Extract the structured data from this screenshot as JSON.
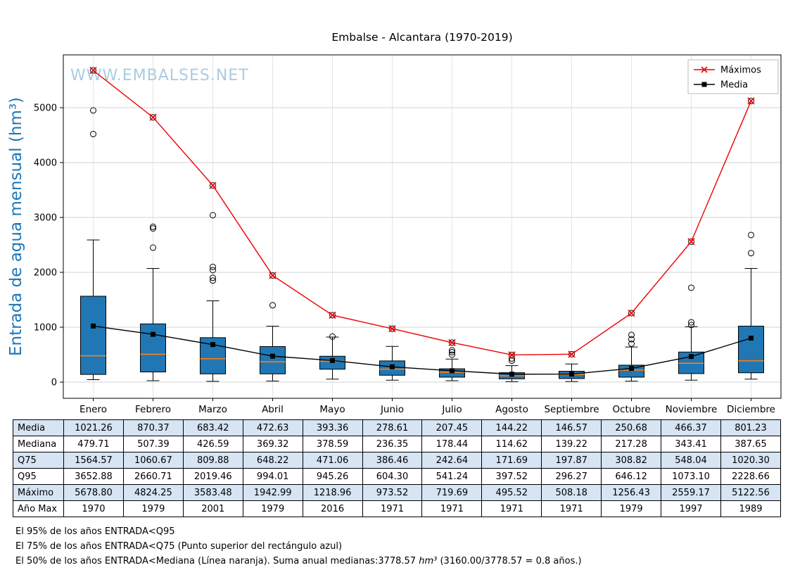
{
  "title": "Embalse - Alcantara (1970-2019)",
  "watermark": "WWW.EMBALSES.NET",
  "colors": {
    "box_fill": "#2077b4",
    "box_edge": "#000000",
    "median_line": "#ff7f0e",
    "max_line": "#ee0000",
    "mean_line": "#000000",
    "grid_h": "#d3d3d3",
    "grid_v": "#e3e3e3",
    "axis": "#000000",
    "watermark": "#a3c6de",
    "ylabel": "#1f77b4",
    "legend_border": "#bbbbbb",
    "table_alt_row": "#d6e4f4"
  },
  "chart_data": {
    "type": "boxplot",
    "title": "Embalse - Alcantara (1970-2019)",
    "ylabel": "Entrada de agua mensual (hm³)",
    "categories": [
      "Enero",
      "Febrero",
      "Marzo",
      "Abril",
      "Mayo",
      "Junio",
      "Julio",
      "Agosto",
      "Septiembre",
      "Octubre",
      "Noviembre",
      "Diciembre"
    ],
    "yticks": [
      0,
      1000,
      2000,
      3000,
      4000,
      5000
    ],
    "ylim": [
      -295,
      5960
    ],
    "grid": true,
    "legend_position": "top-right",
    "series": [
      {
        "name": "Máximos",
        "marker": "x",
        "color": "#ee0000",
        "values": [
          5678.8,
          4824.25,
          3583.48,
          1942.99,
          1218.96,
          973.52,
          719.69,
          495.52,
          508.18,
          1256.43,
          2559.17,
          5122.56
        ]
      },
      {
        "name": "Media",
        "marker": "square",
        "color": "#000000",
        "values": [
          1021.26,
          870.37,
          683.42,
          472.63,
          393.36,
          278.61,
          207.45,
          144.22,
          146.57,
          250.68,
          466.37,
          801.23
        ]
      }
    ],
    "boxplot": {
      "median": [
        479.71,
        507.39,
        426.59,
        369.32,
        378.59,
        236.35,
        178.44,
        114.62,
        139.22,
        217.28,
        343.41,
        387.65
      ],
      "q3": [
        1564.57,
        1060.67,
        809.88,
        648.22,
        471.06,
        386.46,
        242.64,
        171.69,
        197.87,
        308.82,
        548.04,
        1020.3
      ],
      "q1": [
        140,
        185,
        150,
        150,
        235,
        125,
        90,
        60,
        65,
        90,
        155,
        170
      ],
      "whisker_low": [
        45,
        25,
        15,
        20,
        55,
        35,
        25,
        10,
        12,
        18,
        35,
        55
      ],
      "whisker_high": [
        2590,
        2070,
        1480,
        1020,
        820,
        650,
        420,
        300,
        330,
        640,
        1010,
        2070
      ],
      "outliers": [
        [
          4520,
          4950,
          5678.8
        ],
        [
          2450,
          2800,
          2830,
          4824.25
        ],
        [
          1850,
          1900,
          2040,
          2100,
          3040,
          3583.48
        ],
        [
          1400,
          1942.99
        ],
        [
          830,
          1218.96
        ],
        [
          973.52
        ],
        [
          500,
          545,
          580,
          719.69
        ],
        [
          390,
          430,
          495.52
        ],
        [
          508.18
        ],
        [
          700,
          780,
          860,
          1256.43
        ],
        [
          1040,
          1090,
          1720,
          2559.17
        ],
        [
          2350,
          2680,
          5122.56
        ]
      ]
    }
  },
  "table": {
    "row_labels": [
      "Media",
      "Mediana",
      "Q75",
      "Q95",
      "Máximo",
      "Año Max"
    ],
    "rows": [
      [
        "1021.26",
        "870.37",
        "683.42",
        "472.63",
        "393.36",
        "278.61",
        "207.45",
        "144.22",
        "146.57",
        "250.68",
        "466.37",
        "801.23"
      ],
      [
        "479.71",
        "507.39",
        "426.59",
        "369.32",
        "378.59",
        "236.35",
        "178.44",
        "114.62",
        "139.22",
        "217.28",
        "343.41",
        "387.65"
      ],
      [
        "1564.57",
        "1060.67",
        "809.88",
        "648.22",
        "471.06",
        "386.46",
        "242.64",
        "171.69",
        "197.87",
        "308.82",
        "548.04",
        "1020.30"
      ],
      [
        "3652.88",
        "2660.71",
        "2019.46",
        "994.01",
        "945.26",
        "604.30",
        "541.24",
        "397.52",
        "296.27",
        "646.12",
        "1073.10",
        "2228.66"
      ],
      [
        "5678.80",
        "4824.25",
        "3583.48",
        "1942.99",
        "1218.96",
        "973.52",
        "719.69",
        "495.52",
        "508.18",
        "1256.43",
        "2559.17",
        "5122.56"
      ],
      [
        "1970",
        "1979",
        "2001",
        "1979",
        "2016",
        "1971",
        "1971",
        "1971",
        "1971",
        "1979",
        "1997",
        "1989"
      ]
    ]
  },
  "footer": {
    "line1": "El 95% de los años ENTRADA<Q95",
    "line2": "El 75% de los años ENTRADA<Q75 (Punto superior del rectángulo azul)",
    "line3_pre": "El 50% de los años ENTRADA<Mediana (Línea naranja). Suma anual medianas:3778.57 ",
    "line3_unit": "hm³",
    "line3_post": " (3160.00/3778.57 = 0.8 años.)"
  }
}
